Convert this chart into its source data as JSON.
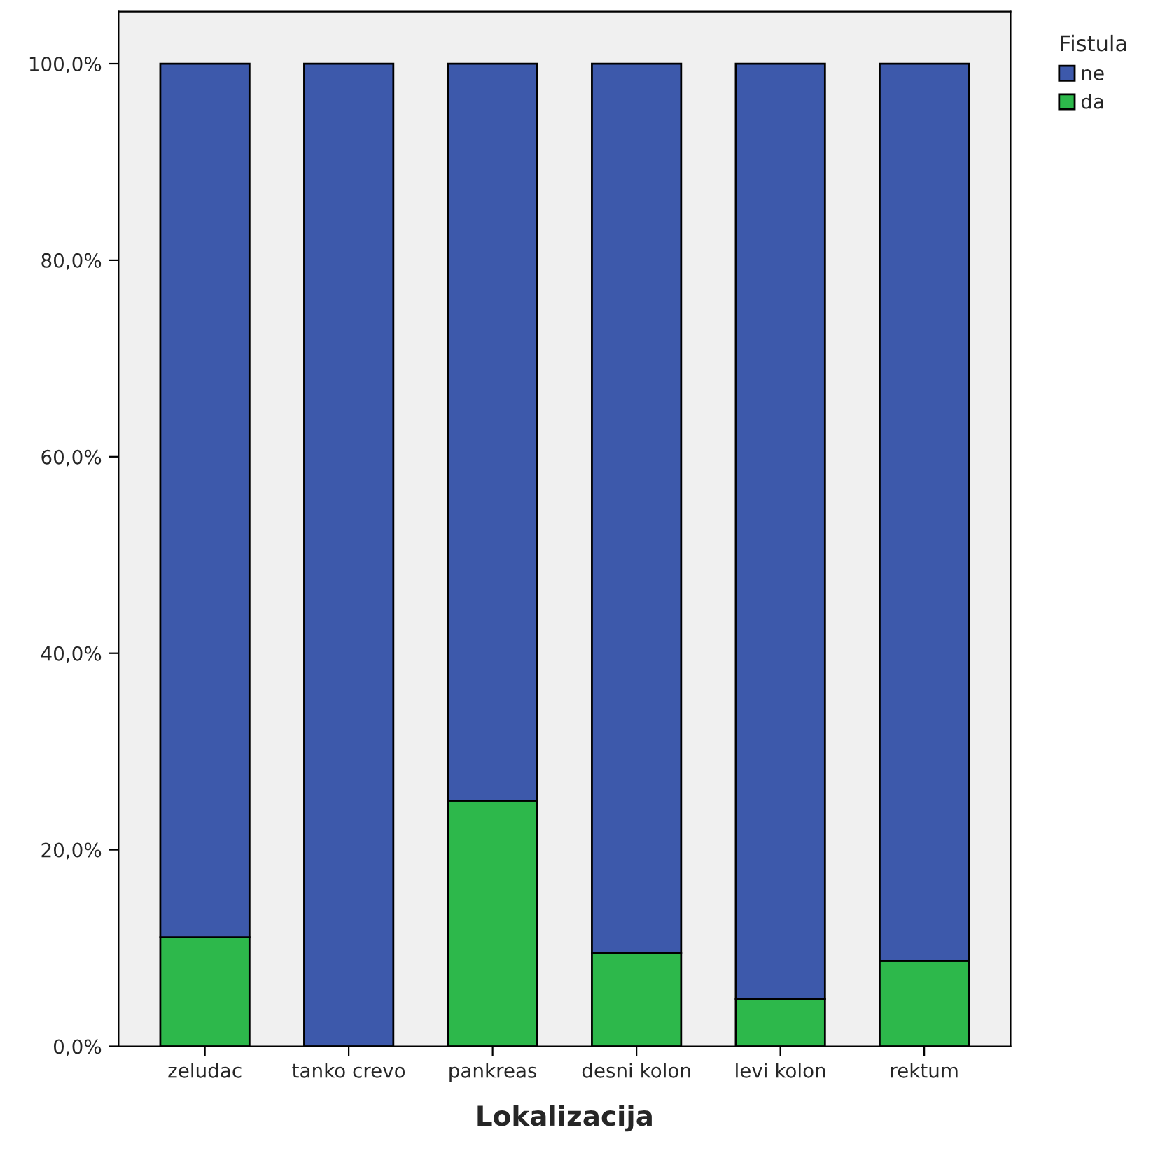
{
  "chart_data": {
    "type": "bar",
    "stacked": true,
    "xlabel": "Lokalizacija",
    "legend_title": "Fistula",
    "legend": "top right",
    "categories": [
      "zeludac",
      "tanko crevo",
      "pankreas",
      "desni kolon",
      "levi kolon",
      "rektum"
    ],
    "series": [
      {
        "name": "da",
        "color": "#2db84b",
        "values": [
          11.1,
          0,
          25,
          9.5,
          4.8,
          8.7
        ]
      },
      {
        "name": "ne",
        "color": "#3d59ab",
        "values": [
          88.9,
          100,
          75,
          90.5,
          95.2,
          91.3
        ]
      }
    ],
    "ylim": [
      0,
      105.3
    ],
    "yticks": [
      {
        "value": 0,
        "label": "0,0%"
      },
      {
        "value": 20,
        "label": "20,0%"
      },
      {
        "value": 40,
        "label": "40,0%"
      },
      {
        "value": 60,
        "label": "60,0%"
      },
      {
        "value": 80,
        "label": "80,0%"
      },
      {
        "value": 100,
        "label": "100,0%"
      }
    ],
    "grid": false
  }
}
